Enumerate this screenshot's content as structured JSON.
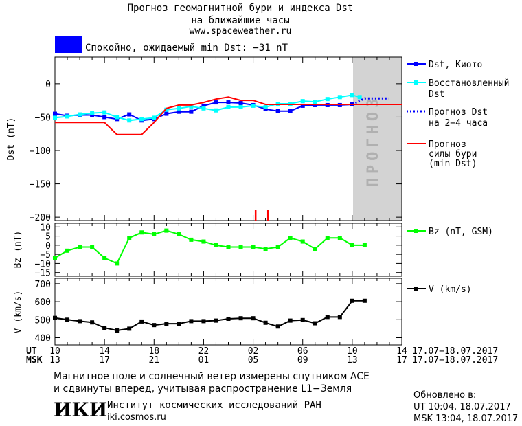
{
  "header": {
    "title_line1": "Прогноз геомагнитной бури и индекса Dst",
    "title_line2": "на ближайшие часы",
    "site": "www.spaceweather.ru",
    "status_color": "#0000ff",
    "status_text": "Спокойно, ожидаемый min Dst: −31 nT"
  },
  "footer": {
    "info_line1": "Магнитное поле и солнечный ветер измерены спутником ACE",
    "info_line2": "и сдвинуты вперед, учитывая распространение L1−Земля",
    "institute_logo": "ИКИ",
    "institute_name": "Институт космических исследований РАН",
    "institute_url": "iki.cosmos.ru",
    "updated_label": "Обновлено в:",
    "updated_ut": "UT  10:04, 18.07.2017",
    "updated_msk": "MSK 13:04, 18.07.2017"
  },
  "time_axis": {
    "ut_label": "UT",
    "msk_label": "MSK",
    "ut_ticks": [
      "10",
      "14",
      "18",
      "22",
      "02",
      "06",
      "10",
      "14"
    ],
    "msk_ticks": [
      "13",
      "17",
      "21",
      "01",
      "05",
      "09",
      "13",
      "17"
    ],
    "date_range_ut": "17.07−18.07.2017",
    "date_range_msk": "17.07−18.07.2017"
  },
  "chart_data": [
    {
      "type": "line",
      "ylabel": "Dst (nT)",
      "ylim": [
        -205,
        40
      ],
      "yticks": [
        0,
        -50,
        -100,
        -150,
        -200
      ],
      "xlim_hours": [
        0,
        28
      ],
      "forecast_zone_hours": [
        24,
        28
      ],
      "forecast_zone_label": "ПРОГНОЗ",
      "series": [
        {
          "name": "Dst, Киото",
          "color": "#0000ff",
          "style": "solid-square",
          "x": [
            0,
            1,
            2,
            3,
            4,
            5,
            6,
            7,
            8,
            9,
            10,
            11,
            12,
            13,
            14,
            15,
            16,
            17,
            18,
            19,
            20,
            21,
            22,
            23,
            24
          ],
          "y": [
            -45,
            -48,
            -47,
            -47,
            -50,
            -53,
            -46,
            -55,
            -53,
            -45,
            -42,
            -42,
            -33,
            -28,
            -28,
            -29,
            -32,
            -38,
            -41,
            -41,
            -33,
            -32,
            -32,
            -32,
            -31
          ]
        },
        {
          "name": "Восстановленный Dst",
          "color": "#00ffff",
          "style": "solid-square",
          "x": [
            0,
            1,
            2,
            3,
            4,
            5,
            6,
            7,
            8,
            9,
            10,
            11,
            12,
            13,
            14,
            15,
            16,
            17,
            18,
            19,
            20,
            21,
            22,
            23,
            24,
            24.6
          ],
          "y": [
            -51,
            -49,
            -46,
            -44,
            -43,
            -50,
            -55,
            -53,
            -51,
            -39,
            -37,
            -34,
            -37,
            -40,
            -35,
            -35,
            -33,
            -35,
            -30,
            -30,
            -26,
            -27,
            -23,
            -20,
            -17,
            -20
          ]
        },
        {
          "name": "Прогноз Dst на 2−4 часа",
          "color": "#0000ff",
          "style": "dotted",
          "x": [
            24,
            25,
            26,
            27
          ],
          "y": [
            -31,
            -22,
            -22,
            -22
          ]
        },
        {
          "name": "Прогноз силы бури (min Dst)",
          "color": "#ff0000",
          "style": "solid",
          "x": [
            0,
            4,
            5,
            7,
            8,
            9,
            10,
            11,
            12,
            13,
            14,
            15,
            16,
            17,
            18,
            19,
            20,
            21,
            22,
            23,
            24,
            28
          ],
          "y": [
            -58,
            -58,
            -76,
            -76,
            -58,
            -37,
            -32,
            -32,
            -28,
            -23,
            -20,
            -25,
            -25,
            -31,
            -31,
            -31,
            -31,
            -31,
            -31,
            -31,
            -31,
            -31
          ]
        }
      ],
      "markers_hours": [
        16.2,
        17.2
      ],
      "marker_color": "#ff0000"
    },
    {
      "type": "line",
      "ylabel": "Bz (nT)",
      "ylim": [
        -17,
        12
      ],
      "yticks": [
        10,
        5,
        0,
        -5,
        -10,
        -15
      ],
      "series": [
        {
          "name": "Bz (nT, GSM)",
          "color": "#00ff00",
          "x": [
            0,
            1,
            2,
            3,
            4,
            5,
            6,
            7,
            8,
            9,
            10,
            11,
            12,
            13,
            14,
            15,
            16,
            17,
            18,
            19,
            20,
            21,
            22,
            23,
            24,
            25
          ],
          "y": [
            -7,
            -3,
            -1,
            -1,
            -7,
            -10,
            4,
            7,
            6,
            8,
            6,
            3,
            2,
            0,
            -1,
            -1,
            -1,
            -2,
            -1,
            4,
            2,
            -2,
            4,
            4,
            0,
            0
          ]
        }
      ]
    },
    {
      "type": "line",
      "ylabel": "V (km/s)",
      "ylim": [
        360,
        730
      ],
      "yticks": [
        700,
        600,
        500,
        400
      ],
      "series": [
        {
          "name": "V (km/s)",
          "color": "#000000",
          "x": [
            0,
            1,
            2,
            3,
            4,
            5,
            6,
            7,
            8,
            9,
            10,
            11,
            12,
            13,
            14,
            15,
            16,
            17,
            18,
            19,
            20,
            21,
            22,
            23,
            24,
            25
          ],
          "y": [
            510,
            500,
            492,
            485,
            455,
            440,
            450,
            490,
            470,
            478,
            478,
            492,
            492,
            495,
            505,
            508,
            508,
            483,
            462,
            495,
            498,
            480,
            515,
            515,
            605,
            605
          ]
        }
      ]
    }
  ]
}
